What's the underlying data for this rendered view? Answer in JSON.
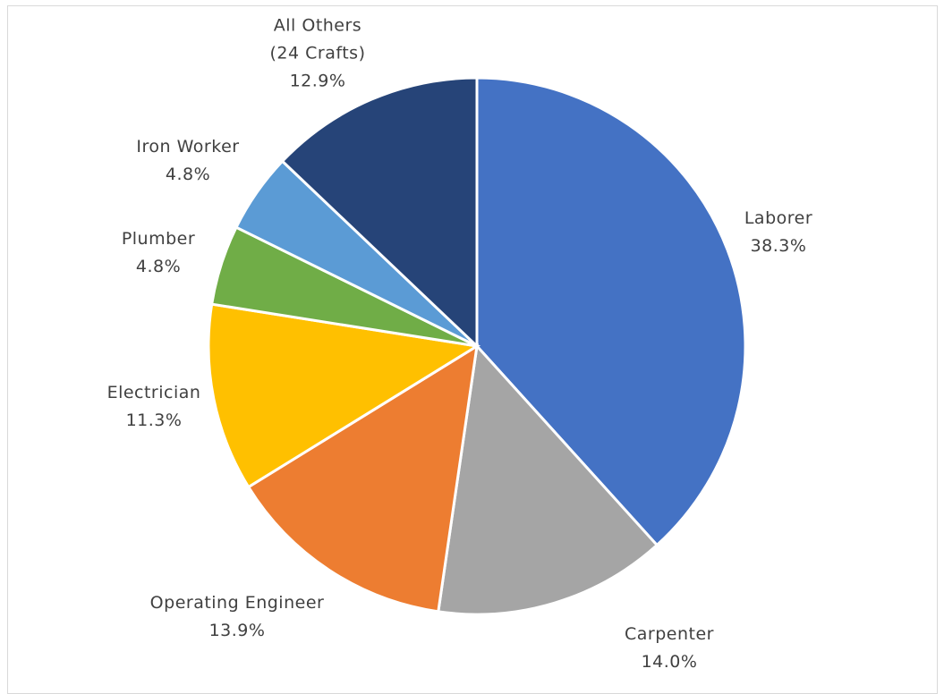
{
  "chart_data": {
    "type": "pie",
    "categories": [
      "Laborer",
      "Carpenter",
      "Operating Engineer",
      "Electrician",
      "Plumber",
      "Iron Worker",
      "All Others\n(24 Crafts)"
    ],
    "values": [
      38.3,
      14.0,
      13.9,
      11.3,
      4.8,
      4.8,
      12.9
    ],
    "value_labels": [
      "38.3%",
      "14.0%",
      "13.9%",
      "11.3%",
      "4.8%",
      "4.8%",
      "12.9%"
    ],
    "colors": [
      "#4472c4",
      "#a5a5a5",
      "#ed7d31",
      "#ffc000",
      "#70ad47",
      "#5b9bd5",
      "#264478"
    ]
  }
}
